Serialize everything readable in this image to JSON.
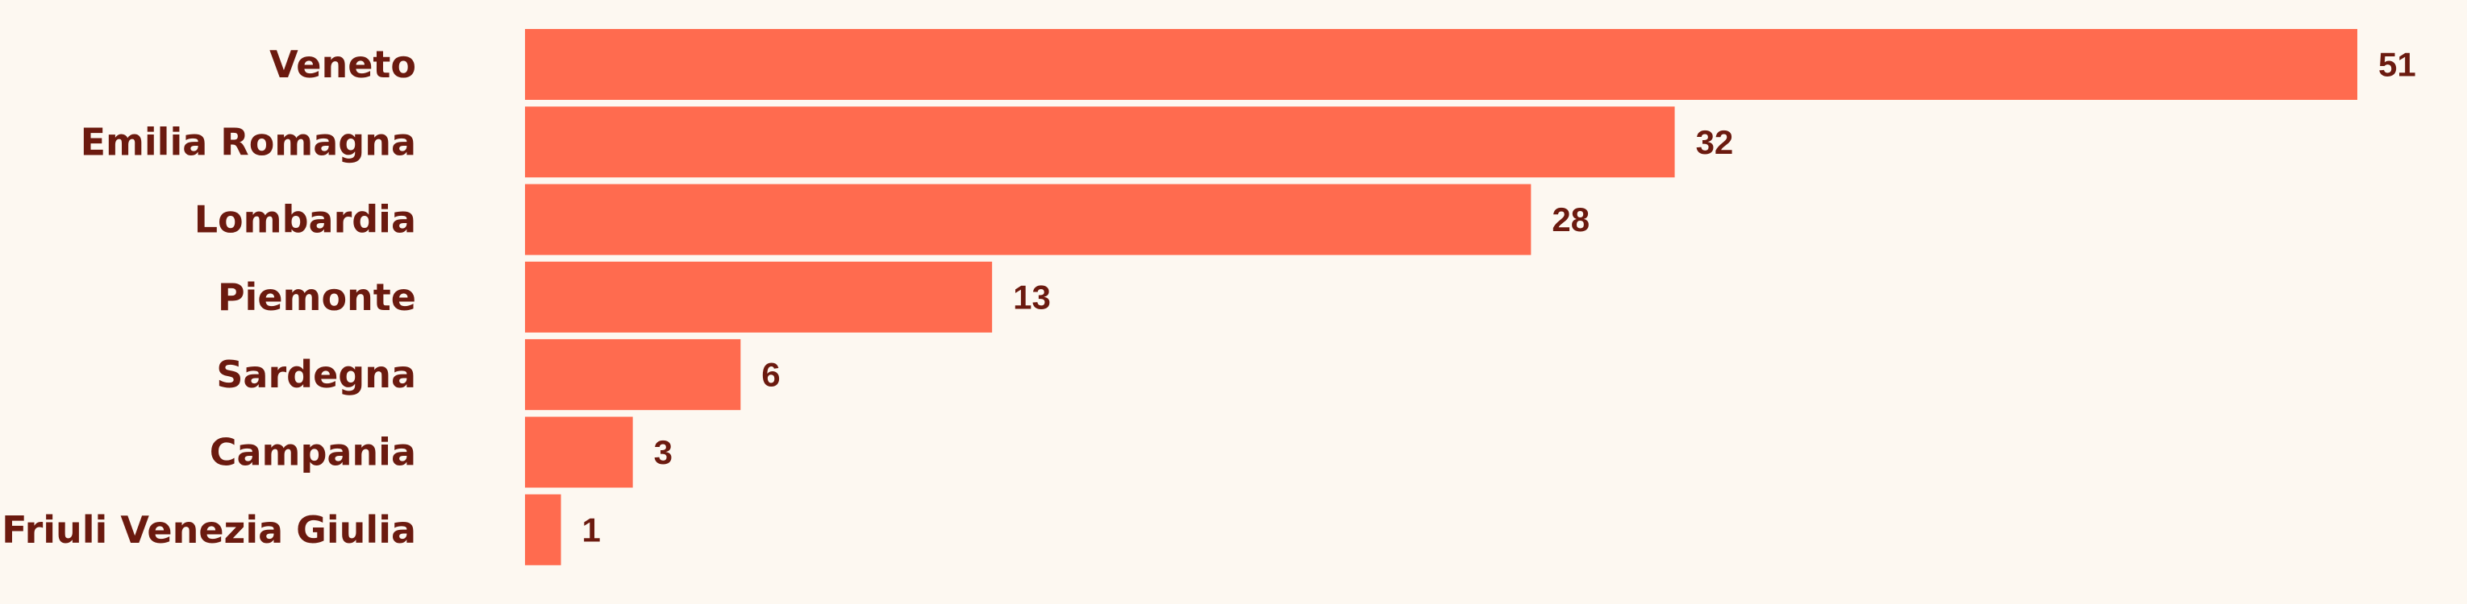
{
  "chart_data": {
    "type": "bar",
    "orientation": "horizontal",
    "categories": [
      "Veneto",
      "Emilia Romagna",
      "Lombardia",
      "Piemonte",
      "Sardegna",
      "Campania",
      "Friuli Venezia Giulia"
    ],
    "values": [
      51,
      32,
      28,
      13,
      6,
      3,
      1
    ],
    "title": "",
    "xlabel": "",
    "ylabel": "",
    "xlim": [
      0,
      51
    ],
    "grid": false,
    "legend": "none",
    "data_labels": true,
    "colors": {
      "bar": "#ff6b4f",
      "text": "#6b1a0f",
      "background": "#fdf8f1"
    }
  }
}
